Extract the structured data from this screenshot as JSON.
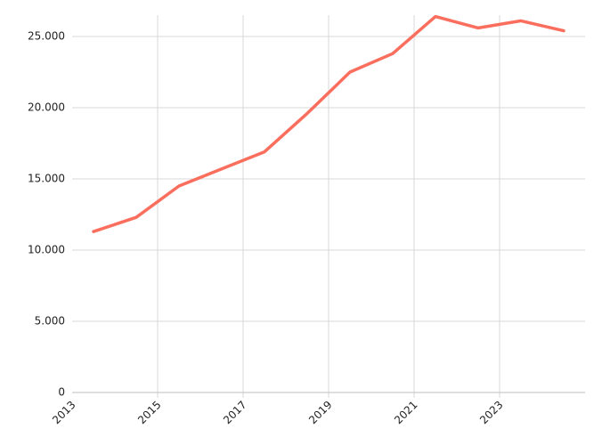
{
  "chart_data": {
    "type": "line",
    "x": [
      2013.5,
      2014.5,
      2015.5,
      2016.5,
      2017.5,
      2018.5,
      2019.5,
      2020.5,
      2021.5,
      2022.5,
      2023.5,
      2024.5
    ],
    "series": [
      {
        "color": "#fa6e5e",
        "values": [
          11300,
          12300,
          14500,
          15700,
          16900,
          19600,
          22500,
          23800,
          26400,
          25600,
          26100,
          25400
        ]
      }
    ],
    "xlim": [
      2013,
      2025
    ],
    "xticks": [
      2013,
      2015,
      2017,
      2019,
      2021,
      2023
    ],
    "ylim": [
      0,
      26500
    ],
    "yticks": [
      0,
      {
        "value": 5000,
        "label": "5.000"
      },
      {
        "value": 10000,
        "label": "10.000"
      },
      {
        "value": 15000,
        "label": "15.000"
      },
      {
        "value": 20000,
        "label": "20.000"
      },
      {
        "value": 25000,
        "label": "25.000"
      }
    ],
    "grid": true
  }
}
